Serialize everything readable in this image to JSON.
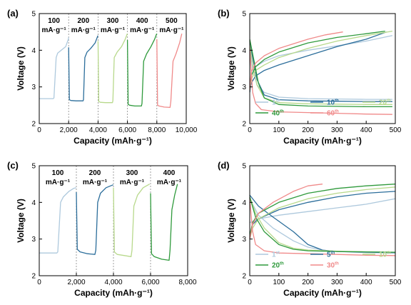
{
  "chart_data": [
    {
      "panel_label": "(a)",
      "type": "line",
      "xlabel": "Capacity (mAh·g⁻¹)",
      "ylabel": "Voltage (V)",
      "xlim": [
        0,
        10000
      ],
      "ylim": [
        2,
        5
      ],
      "xticks": [
        0,
        2000,
        4000,
        6000,
        8000,
        10000
      ],
      "xtick_labels": [
        "0",
        "2,000",
        "4,000",
        "6,000",
        "8,000",
        "10,000"
      ],
      "yticks": [
        2,
        3,
        4,
        5
      ],
      "ytick_labels": [
        "2",
        "3",
        "4",
        "5"
      ],
      "separators": [
        2000,
        4000,
        6000,
        8000
      ],
      "segment_labels": [
        {
          "top": "100",
          "bottom": "mA·g⁻¹",
          "x": 1000
        },
        {
          "top": "200",
          "bottom": "mA·g⁻¹",
          "x": 3000
        },
        {
          "top": "300",
          "bottom": "mA·g⁻¹",
          "x": 5000
        },
        {
          "top": "400",
          "bottom": "mA·g⁻¹",
          "x": 7000
        },
        {
          "top": "500",
          "bottom": "mA·g⁻¹",
          "x": 9000
        }
      ],
      "series": [
        {
          "color": "#aec9dd",
          "x": [
            0,
            950,
            1000,
            1150,
            1250,
            1500,
            1800,
            1980,
            2000
          ],
          "y": [
            2.68,
            2.68,
            2.7,
            3.8,
            3.92,
            4.0,
            4.1,
            4.3,
            4.35
          ]
        },
        {
          "color": "#2c6e9b",
          "x": [
            2000,
            2050,
            2150,
            2500,
            2980,
            3010,
            3100,
            3250,
            3500,
            3800,
            3990
          ],
          "y": [
            4.08,
            2.65,
            2.63,
            2.62,
            2.62,
            2.65,
            3.8,
            3.95,
            4.05,
            4.2,
            4.4
          ]
        },
        {
          "color": "#b8d98c",
          "x": [
            4000,
            4050,
            4150,
            4500,
            4980,
            5010,
            5100,
            5300,
            5600,
            5850,
            5990
          ],
          "y": [
            4.25,
            2.6,
            2.58,
            2.57,
            2.57,
            2.62,
            3.8,
            3.95,
            4.1,
            4.3,
            4.45
          ]
        },
        {
          "color": "#2f9a3c",
          "x": [
            6000,
            6050,
            6150,
            6500,
            6950,
            6990,
            7100,
            7300,
            7600,
            7850,
            7990
          ],
          "y": [
            4.28,
            2.52,
            2.5,
            2.48,
            2.48,
            2.55,
            3.7,
            3.9,
            4.1,
            4.3,
            4.45
          ]
        },
        {
          "color": "#f08a8a",
          "x": [
            8000,
            8050,
            8150,
            8500,
            8900,
            8950,
            9100,
            9300,
            9550,
            9700
          ],
          "y": [
            4.3,
            2.5,
            2.48,
            2.45,
            2.44,
            2.6,
            3.7,
            3.9,
            4.2,
            4.45
          ]
        }
      ]
    },
    {
      "panel_label": "(b)",
      "type": "line",
      "xlabel": "Capacity (mAh·g⁻¹)",
      "ylabel": "Voltage (V)",
      "xlim": [
        0,
        500
      ],
      "ylim": [
        2,
        5
      ],
      "xticks": [
        0,
        100,
        200,
        300,
        400,
        500
      ],
      "xtick_labels": [
        "0",
        "100",
        "200",
        "300",
        "400",
        "500"
      ],
      "yticks": [
        2,
        3,
        4,
        5
      ],
      "ytick_labels": [
        "2",
        "3",
        "4",
        "5"
      ],
      "legend": [
        {
          "base": "1",
          "sup": "st",
          "color": "#aec9dd"
        },
        {
          "base": "10",
          "sup": "th",
          "color": "#2c6e9b"
        },
        {
          "base": "20",
          "sup": "th",
          "color": "#b8d98c"
        },
        {
          "base": "40",
          "sup": "th",
          "color": "#2f9a3c"
        },
        {
          "base": "60",
          "sup": "th",
          "color": "#f08a8a"
        }
      ],
      "series": [
        {
          "color": "#aec9dd",
          "x": [
            0,
            10,
            25,
            50,
            100,
            200,
            300,
            400,
            490
          ],
          "y": [
            4.05,
            3.5,
            3.05,
            2.85,
            2.72,
            2.68,
            2.67,
            2.66,
            2.66
          ]
        },
        {
          "color": "#aec9dd",
          "x": [
            0,
            5,
            20,
            50,
            100,
            200,
            300,
            400,
            490
          ],
          "y": [
            3.0,
            3.3,
            3.55,
            3.7,
            3.85,
            4.0,
            4.12,
            4.25,
            4.4
          ]
        },
        {
          "color": "#2c6e9b",
          "x": [
            0,
            10,
            25,
            50,
            100,
            200,
            300,
            400,
            490
          ],
          "y": [
            4.2,
            3.8,
            3.2,
            2.78,
            2.65,
            2.62,
            2.61,
            2.6,
            2.6
          ]
        },
        {
          "color": "#2c6e9b",
          "x": [
            0,
            5,
            20,
            50,
            100,
            200,
            300,
            400,
            470
          ],
          "y": [
            2.85,
            3.1,
            3.3,
            3.45,
            3.6,
            3.85,
            4.1,
            4.3,
            4.5
          ]
        },
        {
          "color": "#b8d98c",
          "x": [
            0,
            10,
            25,
            50,
            100,
            200,
            300,
            400,
            490
          ],
          "y": [
            4.15,
            3.6,
            3.05,
            2.7,
            2.57,
            2.54,
            2.53,
            2.52,
            2.52
          ]
        },
        {
          "color": "#b8d98c",
          "x": [
            0,
            5,
            20,
            50,
            100,
            200,
            300,
            400,
            490
          ],
          "y": [
            2.9,
            3.2,
            3.45,
            3.6,
            3.8,
            4.05,
            4.25,
            4.4,
            4.52
          ]
        },
        {
          "color": "#2f9a3c",
          "x": [
            0,
            10,
            30,
            50,
            100,
            200,
            300,
            400,
            490
          ],
          "y": [
            4.3,
            3.9,
            3.1,
            2.7,
            2.52,
            2.48,
            2.47,
            2.46,
            2.46
          ]
        },
        {
          "color": "#2f9a3c",
          "x": [
            0,
            5,
            20,
            50,
            100,
            200,
            300,
            400,
            465
          ],
          "y": [
            3.0,
            3.3,
            3.55,
            3.75,
            3.95,
            4.2,
            4.35,
            4.45,
            4.52
          ]
        },
        {
          "color": "#f08a8a",
          "x": [
            0,
            10,
            20,
            40,
            100,
            200,
            300,
            400,
            490
          ],
          "y": [
            4.05,
            2.85,
            2.55,
            2.38,
            2.32,
            2.3,
            2.28,
            2.26,
            2.25
          ]
        },
        {
          "color": "#f08a8a",
          "x": [
            0,
            5,
            20,
            50,
            100,
            200,
            260,
            320
          ],
          "y": [
            2.9,
            3.4,
            3.65,
            3.85,
            4.05,
            4.3,
            4.42,
            4.5
          ]
        }
      ]
    },
    {
      "panel_label": "(c)",
      "type": "line",
      "xlabel": "Capacity (mAh·g⁻¹)",
      "ylabel": "Voltage (V)",
      "xlim": [
        0,
        8000
      ],
      "ylim": [
        2,
        5
      ],
      "xticks": [
        0,
        2000,
        4000,
        6000,
        8000
      ],
      "xtick_labels": [
        "0",
        "2,000",
        "4,000",
        "6,000",
        "8,000"
      ],
      "yticks": [
        2,
        3,
        4,
        5
      ],
      "ytick_labels": [
        "2",
        "3",
        "4",
        "5"
      ],
      "separators": [
        2000,
        4000,
        6000
      ],
      "segment_labels": [
        {
          "top": "100",
          "bottom": "mA·g⁻¹",
          "x": 1000
        },
        {
          "top": "200",
          "bottom": "mA·g⁻¹",
          "x": 3000
        },
        {
          "top": "300",
          "bottom": "mA·g⁻¹",
          "x": 5000
        },
        {
          "top": "400",
          "bottom": "mA·g⁻¹",
          "x": 7000
        }
      ],
      "series": [
        {
          "color": "#aec9dd",
          "x": [
            0,
            950,
            1000,
            1150,
            1300,
            1600,
            1850,
            1990
          ],
          "y": [
            2.62,
            2.62,
            2.65,
            4.0,
            4.15,
            4.3,
            4.38,
            4.4
          ]
        },
        {
          "color": "#2c6e9b",
          "x": [
            2000,
            2050,
            2200,
            2600,
            3000,
            3050,
            3150,
            3300,
            3600,
            3990
          ],
          "y": [
            4.28,
            2.72,
            2.65,
            2.6,
            2.58,
            2.7,
            4.0,
            4.25,
            4.4,
            4.48
          ]
        },
        {
          "color": "#b8d98c",
          "x": [
            4000,
            4050,
            4200,
            4600,
            4950,
            5000,
            5100,
            5300,
            5600,
            5950
          ],
          "y": [
            4.4,
            2.65,
            2.58,
            2.55,
            2.52,
            2.7,
            3.9,
            4.2,
            4.4,
            4.5
          ]
        },
        {
          "color": "#2f9a3c",
          "x": [
            6000,
            6050,
            6200,
            6600,
            7000,
            7050,
            7150,
            7300,
            7450
          ],
          "y": [
            4.25,
            2.6,
            2.52,
            2.45,
            2.42,
            2.7,
            3.8,
            4.2,
            4.5
          ]
        }
      ]
    },
    {
      "panel_label": "(d)",
      "type": "line",
      "xlabel": "Capacity (mAh·g⁻¹)",
      "ylabel": "Voltage (V)",
      "xlim": [
        0,
        500
      ],
      "ylim": [
        2,
        5
      ],
      "xticks": [
        0,
        100,
        200,
        300,
        400,
        500
      ],
      "xtick_labels": [
        "0",
        "100",
        "200",
        "300",
        "400",
        "500"
      ],
      "yticks": [
        2,
        3,
        4,
        5
      ],
      "ytick_labels": [
        "2",
        "3",
        "4",
        "5"
      ],
      "legend": [
        {
          "base": "1",
          "sup": "st",
          "color": "#aec9dd"
        },
        {
          "base": "5",
          "sup": "th",
          "color": "#2c6e9b"
        },
        {
          "base": "10",
          "sup": "th",
          "color": "#b8d98c"
        },
        {
          "base": "20",
          "sup": "th",
          "color": "#2f9a3c"
        },
        {
          "base": "30",
          "sup": "th",
          "color": "#f08a8a"
        }
      ],
      "series": [
        {
          "color": "#aec9dd",
          "x": [
            0,
            30,
            80,
            150,
            200,
            250,
            300,
            400,
            500
          ],
          "y": [
            4.1,
            3.65,
            3.3,
            2.95,
            2.78,
            2.7,
            2.66,
            2.63,
            2.62
          ]
        },
        {
          "color": "#aec9dd",
          "x": [
            0,
            30,
            100,
            200,
            300,
            400,
            500
          ],
          "y": [
            3.45,
            3.55,
            3.65,
            3.75,
            3.85,
            3.95,
            4.1
          ]
        },
        {
          "color": "#2c6e9b",
          "x": [
            0,
            30,
            80,
            150,
            200,
            250,
            300,
            400,
            500
          ],
          "y": [
            4.2,
            3.9,
            3.6,
            3.2,
            2.85,
            2.7,
            2.66,
            2.64,
            2.63
          ]
        },
        {
          "color": "#2c6e9b",
          "x": [
            0,
            10,
            30,
            100,
            200,
            300,
            400,
            500
          ],
          "y": [
            3.0,
            3.4,
            3.55,
            3.8,
            4.0,
            4.15,
            4.25,
            4.3
          ]
        },
        {
          "color": "#b8d98c",
          "x": [
            0,
            20,
            50,
            100,
            150,
            200,
            300,
            400,
            500
          ],
          "y": [
            4.15,
            3.7,
            3.3,
            2.9,
            2.75,
            2.7,
            2.67,
            2.65,
            2.64
          ]
        },
        {
          "color": "#b8d98c",
          "x": [
            0,
            10,
            30,
            100,
            200,
            300,
            400,
            500
          ],
          "y": [
            3.0,
            3.3,
            3.55,
            3.85,
            4.1,
            4.25,
            4.35,
            4.42
          ]
        },
        {
          "color": "#2f9a3c",
          "x": [
            0,
            20,
            50,
            100,
            150,
            200,
            300,
            400,
            500
          ],
          "y": [
            4.15,
            3.6,
            3.2,
            2.85,
            2.72,
            2.68,
            2.66,
            2.65,
            2.64
          ]
        },
        {
          "color": "#2f9a3c",
          "x": [
            0,
            10,
            30,
            100,
            200,
            300,
            400,
            500
          ],
          "y": [
            3.1,
            3.45,
            3.7,
            4.0,
            4.25,
            4.38,
            4.45,
            4.5
          ]
        },
        {
          "color": "#f08a8a",
          "x": [
            0,
            10,
            20,
            50,
            100,
            200,
            300,
            400,
            500
          ],
          "y": [
            4.1,
            3.2,
            2.85,
            2.68,
            2.62,
            2.6,
            2.58,
            2.56,
            2.55
          ]
        },
        {
          "color": "#f08a8a",
          "x": [
            0,
            10,
            30,
            80,
            150,
            200,
            250
          ],
          "y": [
            3.0,
            3.4,
            3.7,
            4.0,
            4.3,
            4.45,
            4.5
          ]
        }
      ]
    }
  ]
}
